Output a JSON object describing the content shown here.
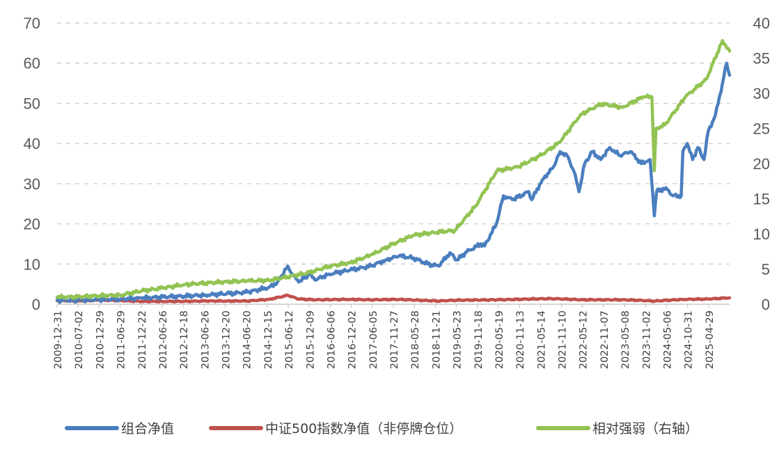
{
  "chart_data": {
    "type": "line",
    "title": "",
    "xlabel": "",
    "ylabel": "",
    "y_left": {
      "range": [
        0,
        70
      ],
      "ticks": [
        "0",
        "10",
        "20",
        "30",
        "40",
        "50",
        "60",
        "70"
      ]
    },
    "y_right": {
      "range": [
        0,
        40
      ],
      "ticks": [
        "0",
        "5",
        "10",
        "15",
        "20",
        "25",
        "30",
        "35",
        "40"
      ]
    },
    "grid": true,
    "legend_position": "bottom",
    "x_range": [
      "2009-12-31",
      "2025-11-15"
    ],
    "x_tick_labels": [
      "2009-12-31",
      "2010-07-02",
      "2010-12-29",
      "2011-06-29",
      "2011-12-22",
      "2012-06-26",
      "2012-12-18",
      "2013-06-26",
      "2013-12-20",
      "2014-06-20",
      "2014-12-15",
      "2015-06-12",
      "2015-12-09",
      "2016-06-06",
      "2016-12-02",
      "2017-06-05",
      "2017-11-27",
      "2018-05-28",
      "2018-11-21",
      "2019-05-23",
      "2019-11-18",
      "2020-05-19",
      "2020-11-13",
      "2021-05-14",
      "2021-11-10",
      "2022-05-12",
      "2022-11-07",
      "2023-05-08",
      "2023-11-02",
      "2024-05-06",
      "2024-10-31",
      "2025-04-29"
    ],
    "series": [
      {
        "name": "组合净值",
        "axis": "left",
        "color": "#4a7ebf",
        "points": [
          [
            "2009-12-31",
            1.0
          ],
          [
            "2010-07-01",
            1.0
          ],
          [
            "2011-01-01",
            1.2
          ],
          [
            "2011-07-01",
            1.3
          ],
          [
            "2012-01-01",
            1.5
          ],
          [
            "2012-07-01",
            1.8
          ],
          [
            "2013-01-01",
            2.0
          ],
          [
            "2013-07-01",
            2.3
          ],
          [
            "2014-01-01",
            2.6
          ],
          [
            "2014-07-01",
            3.0
          ],
          [
            "2015-01-01",
            4.2
          ],
          [
            "2015-03-15",
            5.5
          ],
          [
            "2015-06-12",
            9.5
          ],
          [
            "2015-07-20",
            7.5
          ],
          [
            "2015-09-15",
            5.5
          ],
          [
            "2015-12-15",
            7.5
          ],
          [
            "2016-02-01",
            6.0
          ],
          [
            "2016-06-01",
            7.5
          ],
          [
            "2016-12-01",
            8.5
          ],
          [
            "2017-06-01",
            9.5
          ],
          [
            "2017-10-01",
            11.0
          ],
          [
            "2018-01-26",
            12.0
          ],
          [
            "2018-06-01",
            11.5
          ],
          [
            "2018-10-01",
            10.0
          ],
          [
            "2019-01-03",
            9.5
          ],
          [
            "2019-04-10",
            12.8
          ],
          [
            "2019-06-10",
            11.0
          ],
          [
            "2019-09-01",
            13.0
          ],
          [
            "2019-12-31",
            15.0
          ],
          [
            "2020-02-03",
            14.5
          ],
          [
            "2020-05-15",
            20.0
          ],
          [
            "2020-07-15",
            27.0
          ],
          [
            "2020-09-30",
            26.0
          ],
          [
            "2021-02-18",
            28.0
          ],
          [
            "2021-03-15",
            26.0
          ],
          [
            "2021-06-15",
            31.0
          ],
          [
            "2021-09-15",
            34.0
          ],
          [
            "2021-11-15",
            38.0
          ],
          [
            "2022-01-15",
            37.0
          ],
          [
            "2022-03-15",
            33.0
          ],
          [
            "2022-04-27",
            28.0
          ],
          [
            "2022-06-15",
            35.0
          ],
          [
            "2022-08-20",
            38.0
          ],
          [
            "2022-10-31",
            36.0
          ],
          [
            "2023-01-15",
            39.0
          ],
          [
            "2023-04-15",
            37.0
          ],
          [
            "2023-07-15",
            38.0
          ],
          [
            "2023-10-15",
            35.0
          ],
          [
            "2023-12-31",
            36.0
          ],
          [
            "2024-02-05",
            22.0
          ],
          [
            "2024-02-25",
            28.0
          ],
          [
            "2024-05-15",
            29.0
          ],
          [
            "2024-07-15",
            27.0
          ],
          [
            "2024-09-24",
            27.0
          ],
          [
            "2024-10-08",
            38.0
          ],
          [
            "2024-11-15",
            40.0
          ],
          [
            "2024-12-31",
            36.0
          ],
          [
            "2025-02-15",
            39.0
          ],
          [
            "2025-04-08",
            36.0
          ],
          [
            "2025-05-15",
            43.0
          ],
          [
            "2025-07-15",
            47.0
          ],
          [
            "2025-09-15",
            55.0
          ],
          [
            "2025-10-20",
            60.0
          ],
          [
            "2025-11-15",
            57.0
          ]
        ]
      },
      {
        "name": "中证500指数净值（非停牌仓位）",
        "axis": "left",
        "color": "#c0504d",
        "points": [
          [
            "2009-12-31",
            0.9
          ],
          [
            "2010-07-01",
            0.8
          ],
          [
            "2011-01-01",
            1.0
          ],
          [
            "2011-07-01",
            0.9
          ],
          [
            "2012-01-01",
            0.7
          ],
          [
            "2012-07-01",
            0.7
          ],
          [
            "2013-01-01",
            0.7
          ],
          [
            "2013-07-01",
            0.8
          ],
          [
            "2014-01-01",
            0.8
          ],
          [
            "2014-07-01",
            0.8
          ],
          [
            "2015-01-01",
            1.2
          ],
          [
            "2015-06-12",
            2.2
          ],
          [
            "2015-09-15",
            1.3
          ],
          [
            "2016-02-01",
            1.1
          ],
          [
            "2016-12-01",
            1.2
          ],
          [
            "2017-06-01",
            1.1
          ],
          [
            "2018-01-26",
            1.2
          ],
          [
            "2018-12-31",
            0.8
          ],
          [
            "2019-06-01",
            1.0
          ],
          [
            "2020-06-01",
            1.1
          ],
          [
            "2021-09-01",
            1.4
          ],
          [
            "2022-06-01",
            1.1
          ],
          [
            "2023-06-01",
            1.1
          ],
          [
            "2024-02-05",
            0.8
          ],
          [
            "2024-10-08",
            1.2
          ],
          [
            "2025-06-01",
            1.3
          ],
          [
            "2025-11-15",
            1.6
          ]
        ]
      },
      {
        "name": "相对强弱（右轴）",
        "axis": "right",
        "color": "#92c353",
        "points": [
          [
            "2009-12-31",
            1.0
          ],
          [
            "2010-07-01",
            1.05
          ],
          [
            "2011-01-01",
            1.2
          ],
          [
            "2011-07-01",
            1.3
          ],
          [
            "2012-01-01",
            1.9
          ],
          [
            "2012-07-01",
            2.3
          ],
          [
            "2013-01-01",
            2.8
          ],
          [
            "2013-07-01",
            3.0
          ],
          [
            "2014-01-01",
            3.2
          ],
          [
            "2014-07-01",
            3.3
          ],
          [
            "2015-01-01",
            3.4
          ],
          [
            "2015-06-12",
            3.9
          ],
          [
            "2015-12-15",
            4.5
          ],
          [
            "2016-06-01",
            5.4
          ],
          [
            "2016-12-01",
            5.9
          ],
          [
            "2017-06-01",
            7.0
          ],
          [
            "2017-11-27",
            8.5
          ],
          [
            "2018-05-28",
            9.8
          ],
          [
            "2018-11-21",
            10.2
          ],
          [
            "2019-05-23",
            10.5
          ],
          [
            "2019-11-18",
            14.0
          ],
          [
            "2020-05-19",
            19.0
          ],
          [
            "2020-11-13",
            19.5
          ],
          [
            "2021-05-14",
            21.0
          ],
          [
            "2021-11-10",
            23.0
          ],
          [
            "2022-05-12",
            27.0
          ],
          [
            "2022-11-07",
            28.5
          ],
          [
            "2023-05-08",
            28.0
          ],
          [
            "2023-11-02",
            29.5
          ],
          [
            "2024-01-15",
            29.5
          ],
          [
            "2024-02-05",
            19.0
          ],
          [
            "2024-02-20",
            25.0
          ],
          [
            "2024-05-06",
            25.5
          ],
          [
            "2024-10-31",
            29.5
          ],
          [
            "2025-04-29",
            32.0
          ],
          [
            "2025-09-15",
            37.5
          ],
          [
            "2025-11-15",
            36.0
          ]
        ]
      }
    ]
  }
}
